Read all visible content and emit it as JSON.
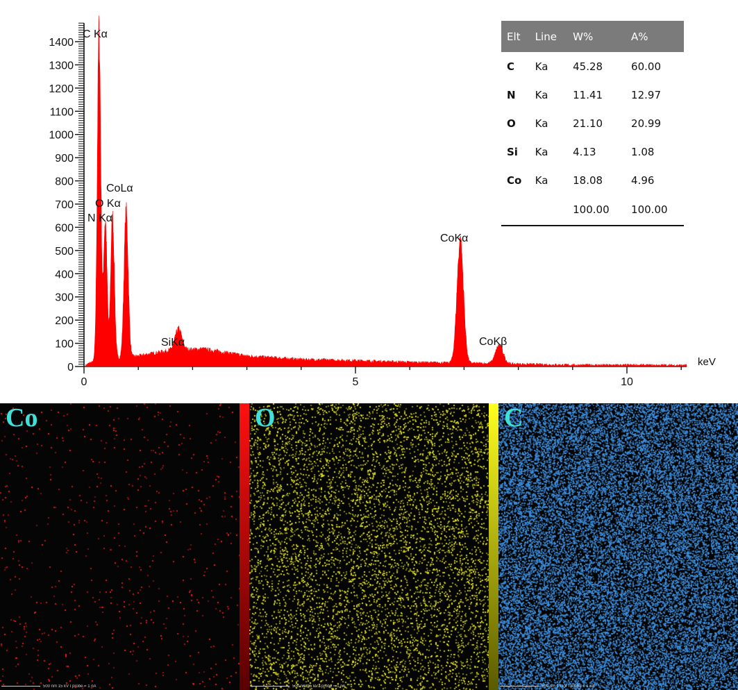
{
  "chart_data": {
    "type": "line",
    "title": "",
    "xlabel": "keV",
    "ylabel": "",
    "xlim": [
      0,
      11.2
    ],
    "ylim": [
      0,
      1480
    ],
    "x_ticks": [
      {
        "value": 0,
        "label": "0"
      },
      {
        "value": 5,
        "label": "5"
      },
      {
        "value": 10,
        "label": "10"
      }
    ],
    "y_ticks": [
      0,
      100,
      200,
      300,
      400,
      500,
      600,
      700,
      800,
      900,
      1000,
      1100,
      1200,
      1300,
      1400
    ],
    "series": [
      {
        "name": "",
        "color": "#ff0000",
        "background": [
          [
            0,
            0
          ],
          [
            0.1,
            15
          ],
          [
            0.2,
            20
          ],
          [
            0.5,
            30
          ],
          [
            1.0,
            45
          ],
          [
            1.6,
            70
          ],
          [
            2.2,
            75
          ],
          [
            3.0,
            45
          ],
          [
            4.0,
            30
          ],
          [
            5.0,
            25
          ],
          [
            6.0,
            18
          ],
          [
            7.5,
            12
          ],
          [
            9.0,
            6
          ],
          [
            11.1,
            5
          ]
        ],
        "peaks": [
          {
            "label": "C Kα",
            "energy": 0.277,
            "counts": 1410,
            "width": 0.032
          },
          {
            "label": "N Kα",
            "energy": 0.392,
            "counts": 600,
            "width": 0.032
          },
          {
            "label": "O Kα",
            "energy": 0.525,
            "counts": 610,
            "width": 0.034
          },
          {
            "label": "CoLα",
            "energy": 0.776,
            "counts": 625,
            "width": 0.038
          },
          {
            "label": "SiKα",
            "energy": 1.74,
            "counts": 90,
            "width": 0.06
          },
          {
            "label": "CoKα",
            "energy": 6.93,
            "counts": 525,
            "width": 0.06
          },
          {
            "label": "CoKβ",
            "energy": 7.65,
            "counts": 80,
            "width": 0.07
          }
        ]
      }
    ],
    "annotations": [
      {
        "text": "C Kα"
      },
      {
        "text": "CoLα"
      },
      {
        "text": "O Kα"
      },
      {
        "text": "N Kα"
      },
      {
        "text": "SiKα"
      },
      {
        "text": "CoKα"
      },
      {
        "text": "CoKβ"
      }
    ]
  },
  "table": {
    "headers": [
      "Elt",
      "Line",
      "W%",
      "A%"
    ],
    "rows": [
      {
        "elt": "C",
        "line": "Ka",
        "w": "45.28",
        "a": "60.00"
      },
      {
        "elt": "N",
        "line": "Ka",
        "w": "11.41",
        "a": "12.97"
      },
      {
        "elt": "O",
        "line": "Ka",
        "w": "21.10",
        "a": "20.99"
      },
      {
        "elt": "Si",
        "line": "Ka",
        "w": "4.13",
        "a": "1.08"
      },
      {
        "elt": "Co",
        "line": "Ka",
        "w": "18.08",
        "a": "4.96"
      }
    ],
    "total": {
      "w": "100.00",
      "a": "100.00"
    }
  },
  "maps": [
    {
      "label": "Co",
      "color": "#ff1a1a",
      "scale_text": "500 nm    15 kV    I probe = 1 nA"
    },
    {
      "label": "O",
      "color": "#e6e61a",
      "scale_text": "500 nm    15 kV    I probe = 1 nA"
    },
    {
      "label": "C",
      "color": "#3d8fe0",
      "scale_text": "500 nm    15 kV    I probe = 1 nA"
    }
  ]
}
